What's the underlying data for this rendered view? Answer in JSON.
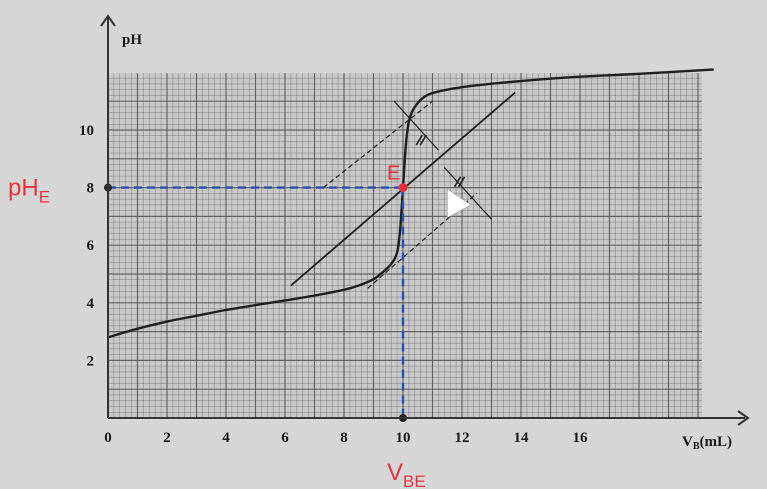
{
  "chart_data": {
    "type": "line",
    "title": "",
    "xlabel": "V",
    "xlabel_sub": "B",
    "xlabel_unit": "(mL)",
    "ylabel": "pH",
    "xlim": [
      0,
      21
    ],
    "ylim": [
      0,
      12
    ],
    "x_ticks": [
      0,
      2,
      4,
      6,
      8,
      10,
      12,
      14,
      16
    ],
    "y_ticks": [
      2,
      4,
      6,
      8,
      10
    ],
    "grid": true,
    "series": [
      {
        "x": [
          0,
          1,
          2,
          3,
          4,
          5,
          6,
          7,
          8,
          8.5,
          9,
          9.3,
          9.6,
          9.8,
          9.9,
          10,
          10.1,
          10.2,
          10.4,
          10.8,
          11.5,
          12.5,
          14,
          16,
          18,
          20.5
        ],
        "y": [
          2.8,
          3.1,
          3.35,
          3.55,
          3.75,
          3.92,
          4.08,
          4.25,
          4.45,
          4.6,
          4.82,
          5.05,
          5.35,
          5.75,
          6.5,
          8.0,
          9.5,
          10.3,
          10.8,
          11.2,
          11.4,
          11.55,
          11.7,
          11.85,
          11.95,
          12.1
        ]
      }
    ],
    "annotations": {
      "equivalence_point": {
        "label": "E",
        "x": 10,
        "y": 8.0
      },
      "ph_label_main": "pH",
      "ph_label_sub": "E",
      "v_label_main": "V",
      "v_label_sub": "BE"
    },
    "construction_lines": {
      "tangent_upper": [
        [
          7.3,
          8.0
        ],
        [
          11.0,
          11.0
        ]
      ],
      "tangent_lower": [
        [
          8.8,
          4.5
        ],
        [
          12.5,
          7.8
        ]
      ],
      "middle_line": [
        [
          6.2,
          4.6
        ],
        [
          13.8,
          11.3
        ]
      ],
      "perpendicular_top": [
        [
          9.7,
          11.0
        ],
        [
          11.2,
          9.3
        ]
      ],
      "perpendicular_bottom": [
        [
          11.4,
          8.7
        ],
        [
          13.0,
          6.9
        ]
      ]
    },
    "colors": {
      "curve": "#1f1f1f",
      "grid": "#5a5a5a",
      "paper": "#d6d6d6",
      "highlight": "#e8323c",
      "projection": "#2b4fb0"
    }
  }
}
